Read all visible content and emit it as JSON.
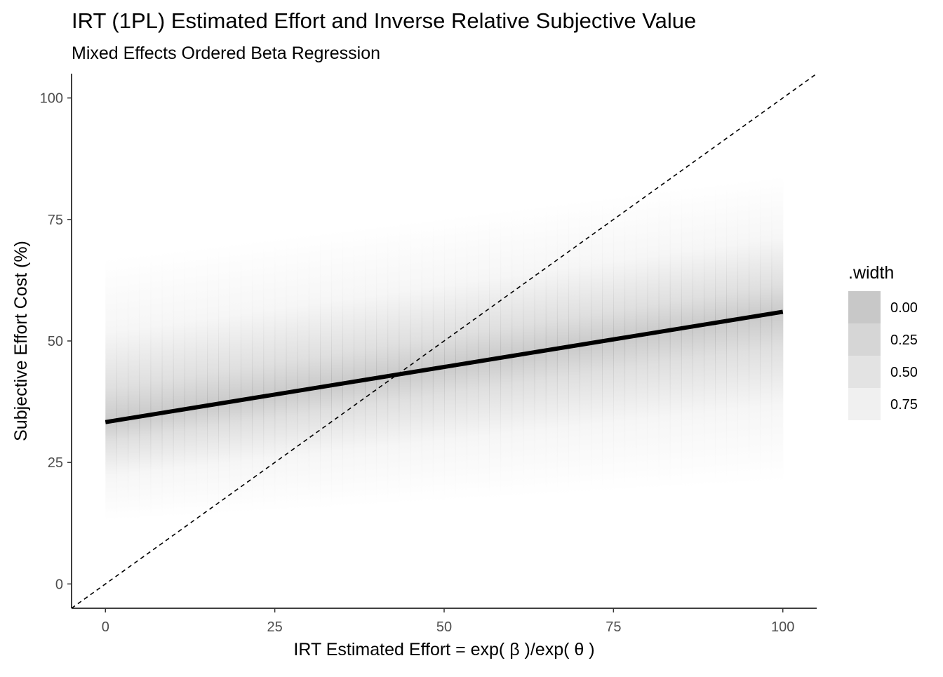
{
  "chart_data": {
    "type": "line",
    "title": "IRT (1PL) Estimated Effort and Inverse Relative Subjective Value",
    "subtitle": "Mixed Effects Ordered Beta Regression",
    "xlabel": "IRT Estimated Effort = exp( β )/exp( θ )",
    "ylabel": "Subjective Effort Cost (%)",
    "xlim": [
      -5,
      105
    ],
    "ylim": [
      -5,
      105
    ],
    "x_ticks": [
      0,
      25,
      50,
      75,
      100
    ],
    "y_ticks": [
      0,
      25,
      50,
      75,
      100
    ],
    "x_tick_labels": [
      "0",
      "25",
      "50",
      "75",
      "100"
    ],
    "y_tick_labels": [
      "0",
      "25",
      "50",
      "75",
      "100"
    ],
    "grid": false,
    "series": [
      {
        "x": [
          0,
          100
        ],
        "y": [
          33.3,
          56.0
        ],
        "color": "#000000",
        "style": "solid"
      },
      {
        "x": [
          -5,
          105
        ],
        "y": [
          -5,
          105
        ],
        "color": "#000000",
        "style": "dashed"
      }
    ],
    "gradient_band": {
      "x": [
        0,
        100
      ],
      "center": [
        33.3,
        56.0
      ],
      "lower": [
        13.0,
        21.0
      ],
      "upper": [
        67.0,
        84.0
      ],
      "color": "#808080"
    },
    "legend": {
      "title": ".width",
      "position": "right",
      "entries": [
        {
          "label": "0.00",
          "color": "#c8c8c8"
        },
        {
          "label": "0.25",
          "color": "#d6d6d6"
        },
        {
          "label": "0.50",
          "color": "#e3e3e3"
        },
        {
          "label": "0.75",
          "color": "#f0f0f0"
        }
      ]
    }
  }
}
